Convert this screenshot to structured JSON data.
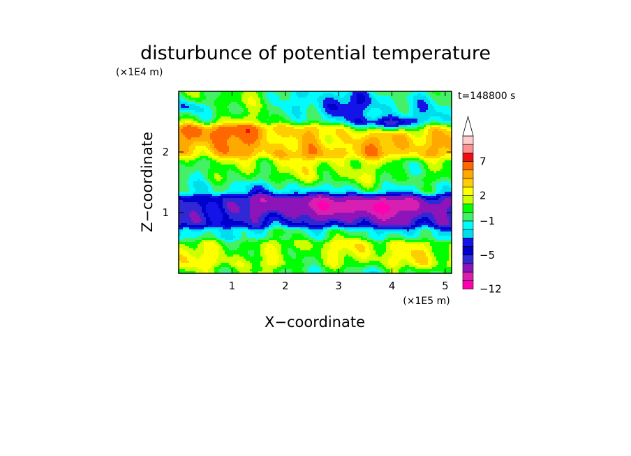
{
  "chart_data": {
    "type": "heatmap",
    "title": "disturbunce of potential temperature",
    "time_label": "t=148800 s",
    "xlabel": "X−coordinate",
    "ylabel": "Z−coordinate",
    "x_unit": "(×1E5 m)",
    "y_unit": "(×1E4 m)",
    "xlim": [
      0,
      5.12
    ],
    "ylim": [
      0,
      3.0
    ],
    "x_ticks": [
      "1",
      "2",
      "3",
      "4",
      "5"
    ],
    "y_ticks": [
      "1",
      "2"
    ],
    "colorbar": {
      "levels": [
        -12,
        -10,
        -8,
        -6,
        -5,
        -4,
        -3,
        -2,
        -1,
        0,
        1,
        2,
        3,
        4,
        5,
        7,
        9,
        11
      ],
      "colors": [
        "#ff00b0",
        "#d71fb1",
        "#8c14b8",
        "#3028d4",
        "#0000cc",
        "#1414e8",
        "#00dcec",
        "#00fcfc",
        "#44f066",
        "#00ff00",
        "#ccff00",
        "#ffff00",
        "#ffce00",
        "#ffa800",
        "#ff6800",
        "#ec1010",
        "#ff9090",
        "#ffcccc"
      ],
      "tick_labels": [
        "7",
        "2",
        "−1",
        "−5",
        "−12"
      ],
      "extend": "max"
    },
    "field": {
      "description_levels": "band-wise approximate values of the perturbation field by height (data units: x in 1E5 m, z in 1E4 m)",
      "bands": [
        {
          "z": [
            0.0,
            0.1
          ],
          "value": 0
        },
        {
          "z": [
            0.1,
            0.55
          ],
          "value": 1.5
        },
        {
          "z": [
            0.55,
            0.75
          ],
          "value": -1
        },
        {
          "z": [
            0.75,
            1.3
          ],
          "value": -5
        },
        {
          "z": [
            1.3,
            1.5
          ],
          "value": -1
        },
        {
          "z": [
            1.5,
            1.9
          ],
          "value": 0.5
        },
        {
          "z": [
            1.9,
            2.45
          ],
          "value": 3
        },
        {
          "z": [
            2.45,
            3.0
          ],
          "value": -1
        }
      ]
    }
  }
}
